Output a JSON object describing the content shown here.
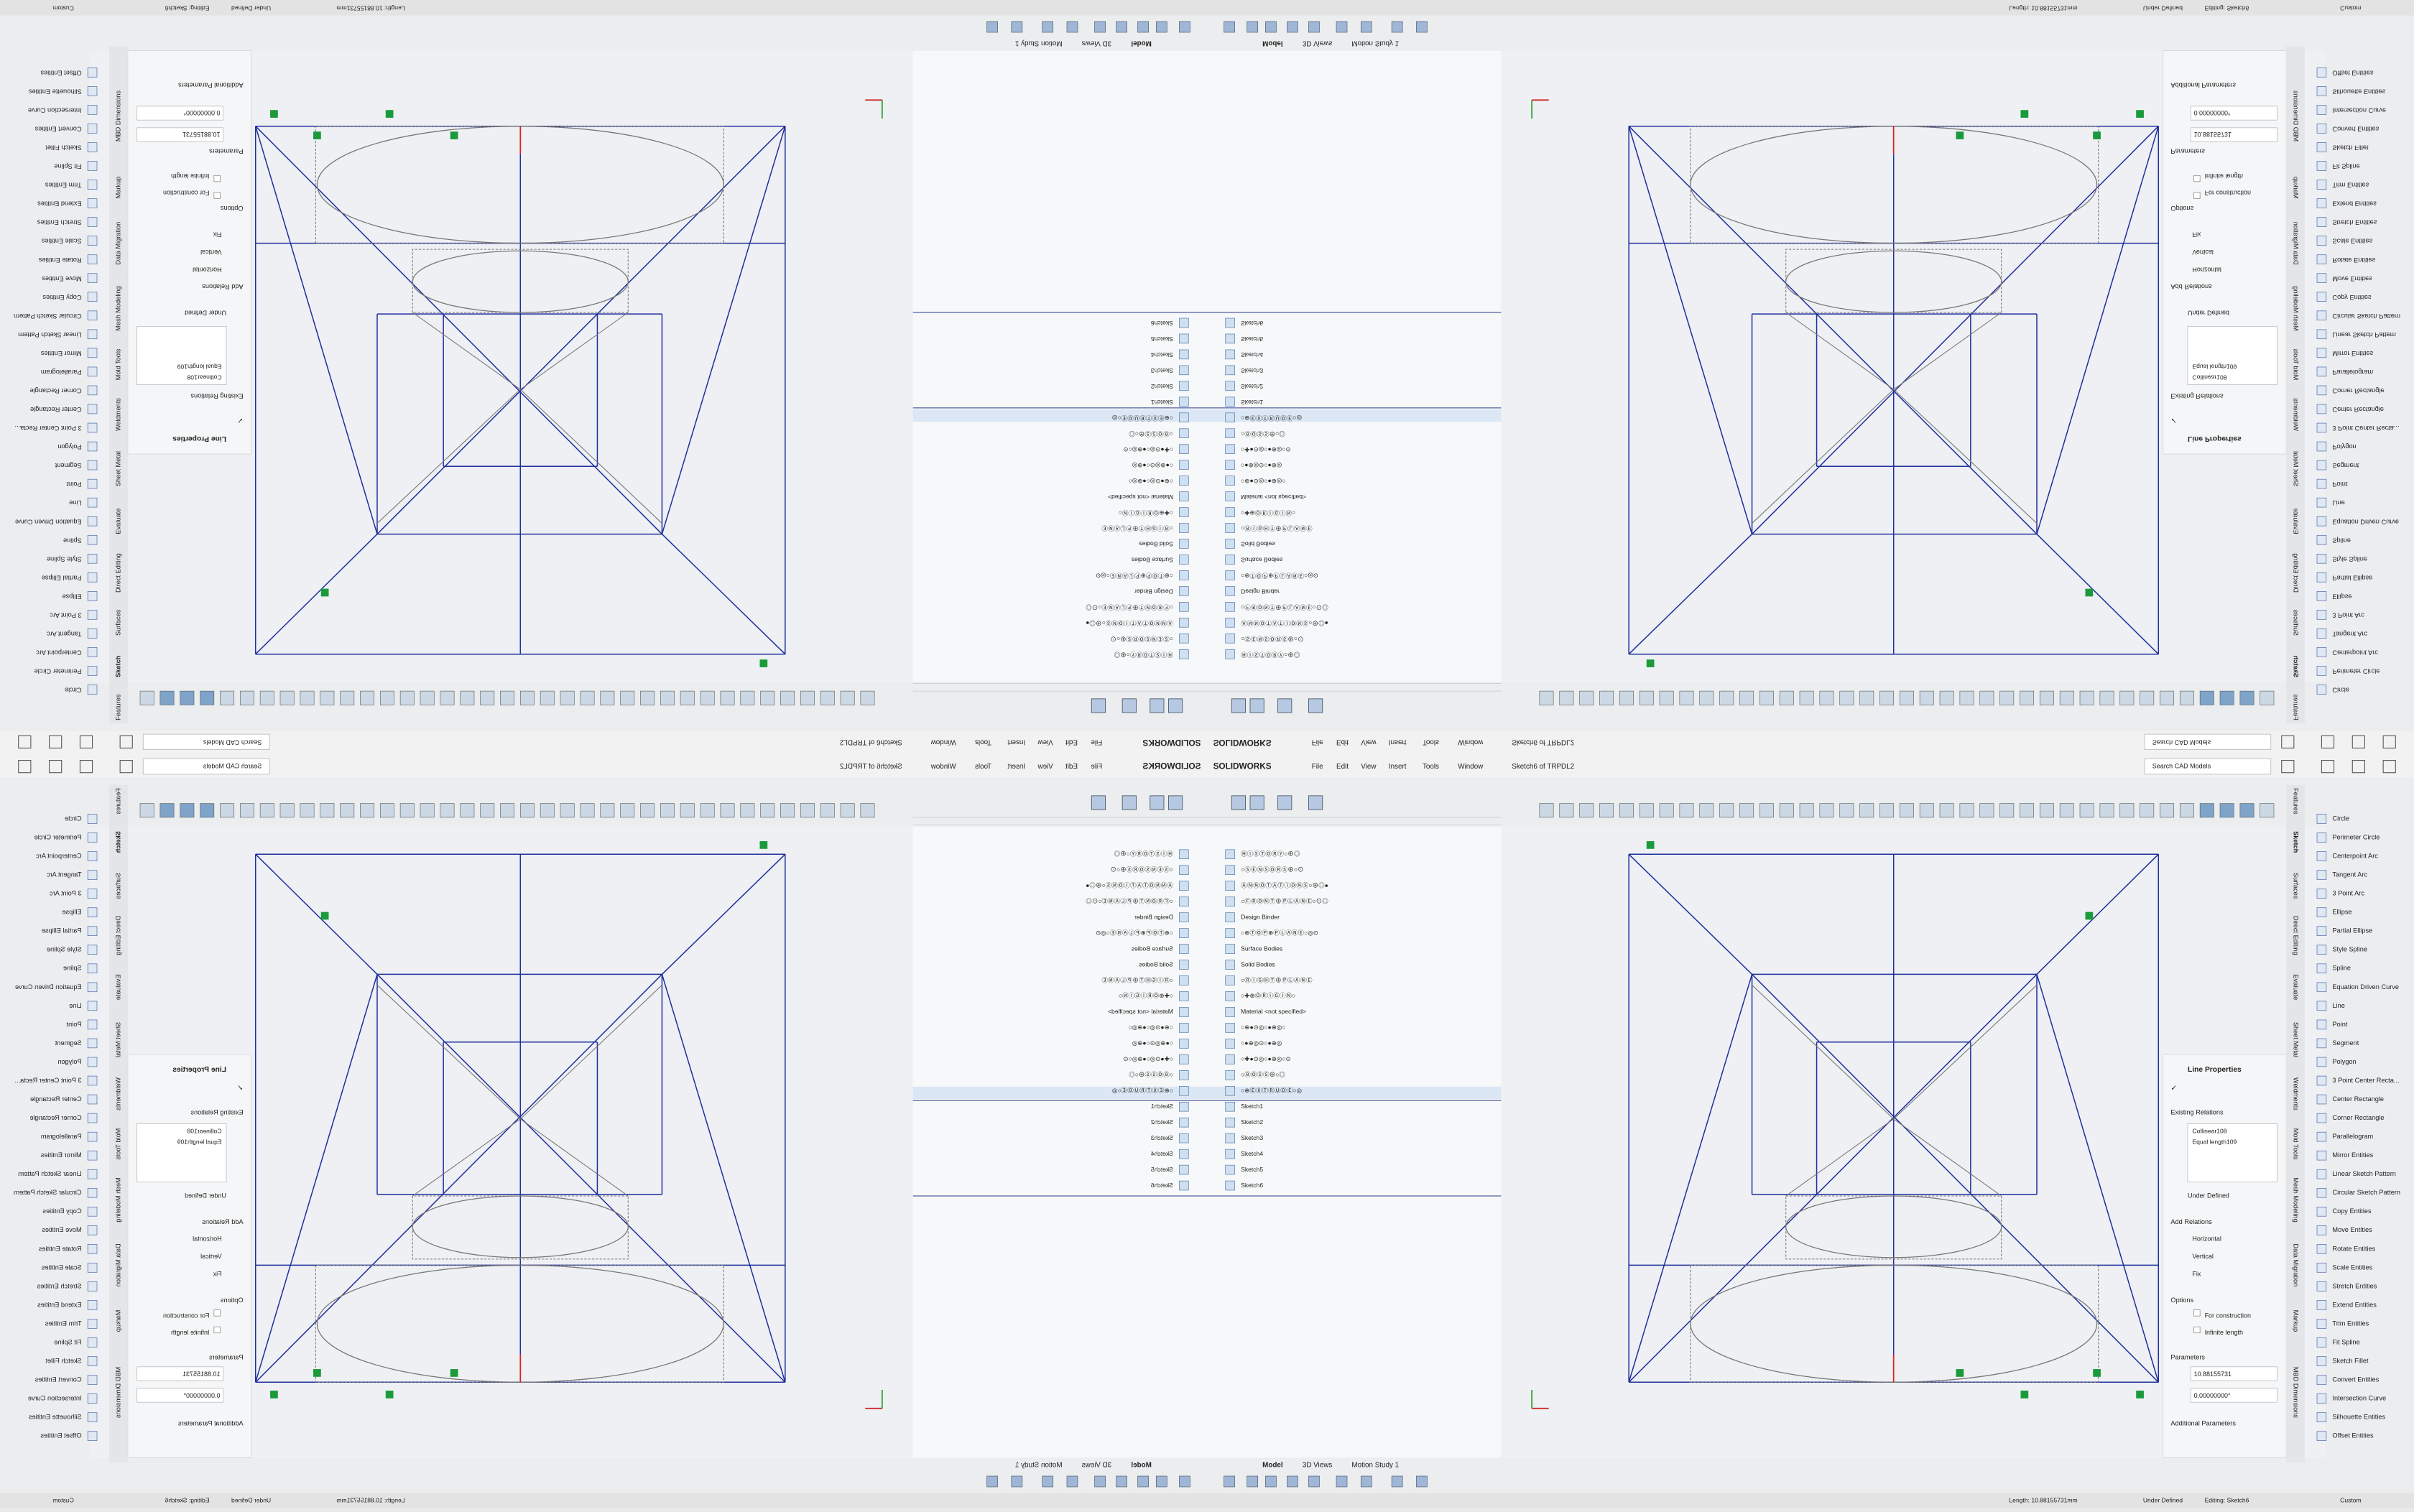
{
  "title_bar": {
    "app": "SOLIDWORKS",
    "menu": [
      "File",
      "Edit",
      "View",
      "Insert",
      "Tools",
      "Window"
    ],
    "document": "Sketch6 of TRPDL2",
    "search": "Search CAD Models"
  },
  "feature_tree": {
    "items": [
      "ⒽⒾⓈⓉⓄⓇⓎ○⊕◎",
      "○ⓈⒺⓃⓈⓄⓇⓈ⊕○⊙",
      "ⒶⓃⓃⓄⓉⒶⓉⒾⓄⓃⓈ○⊕◎●",
      "○ⒻⓇⓄⓃⓉ⊕ⓅⓁⒶⓃⒺ○⊙◎",
      "Design Binder",
      "○⊕ⓉⓄⓅ⊕ⓅⓁⒶⓃⒺ○◎⊙",
      "Surface Bodies",
      "Solid Bodies",
      "○ⓇⒾⒼⒽⓉ⊕ⓅⓁⒶⓃⒺ",
      "○✚⊕ⓄⓇⒾⒼⒾⓃ○",
      "Material <not specified>",
      "○⊕●⊙◎○●⊕◎○",
      "○●⊕◎⊙○●⊕◎",
      "○✚●⊙◎○●⊕◎○⊙",
      "○ⒷⓄⓈⓈ⊕○◎",
      "○⊕ⒺⓍⓉⓇⓊⒹⒺ○◎",
      "Sketch1",
      "Sketch2",
      "Sketch3",
      "Sketch4",
      "Sketch5",
      "Sketch6"
    ],
    "tabs": [
      "Model",
      "3D Views",
      "Motion Study 1"
    ]
  },
  "property_manager": {
    "title": "Line Properties",
    "existing_relations": "Existing Relations",
    "relations": [
      "Collinear108",
      "Equal length109"
    ],
    "status": "Under Defined",
    "add_relations": "Add Relations",
    "add_options": [
      "Horizontal",
      "Vertical",
      "Fix"
    ],
    "options": "Options",
    "option_items": [
      "For construction",
      "Infinite length"
    ],
    "parameters": "Parameters",
    "parameter_values": [
      "10.88155731",
      "0.00000000°"
    ],
    "additional": "Additional Parameters"
  },
  "command_tabs": [
    "Features",
    "Sketch",
    "Surfaces",
    "Direct Editing",
    "Evaluate",
    "Sheet Metal",
    "Weldments",
    "Mold Tools",
    "Mesh Modeling",
    "Data Migration",
    "Markup",
    "MBD Dimensions"
  ],
  "sketch_commands": [
    "Circle",
    "Perimeter Circle",
    "Centerpoint Arc",
    "Tangent Arc",
    "3 Point Arc",
    "Ellipse",
    "Partial Ellipse",
    "Style Spline",
    "Spline",
    "Equation Driven Curve",
    "Line",
    "Point",
    "Segment",
    "Polygon",
    "3 Point Center Recta...",
    "Center Rectangle",
    "Corner Rectangle",
    "Parallelogram",
    "Mirror Entities",
    "Linear Sketch Pattern",
    "Circular Sketch Pattern",
    "Copy Entities",
    "Move Entities",
    "Rotate Entities",
    "Scale Entities",
    "Stretch Entities",
    "Extend Entities",
    "Trim Entities",
    "Fit Spline",
    "Sketch Fillet",
    "Convert Entities",
    "Intersection Curve",
    "Silhouette Entities",
    "Offset Entities"
  ],
  "status_bar": {
    "length": "Length: 10.88155731mm",
    "state": "Under Defined",
    "editing": "Editing: Sketch6",
    "units": "Custom"
  }
}
